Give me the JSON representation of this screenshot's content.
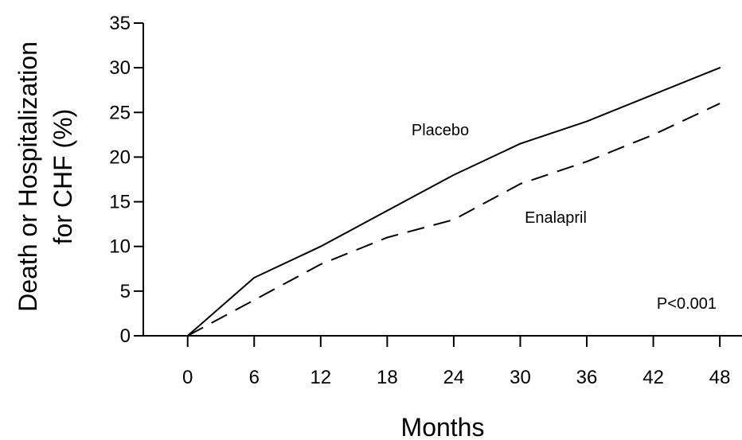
{
  "chart_data": {
    "type": "line",
    "title": "",
    "xlabel": "Months",
    "ylabel_lines": [
      "Death or Hospitalization",
      "for CHF (%)"
    ],
    "xlim": [
      -4,
      50
    ],
    "ylim": [
      0,
      35
    ],
    "x_ticks": [
      0,
      6,
      12,
      18,
      24,
      30,
      36,
      42,
      48
    ],
    "y_ticks": [
      0,
      5,
      10,
      15,
      20,
      25,
      30,
      35
    ],
    "grid": false,
    "legend": "none",
    "series": [
      {
        "name": "Placebo",
        "style": "solid",
        "color": "#000000",
        "x": [
          0,
          6,
          12,
          18,
          24,
          30,
          36,
          42,
          48
        ],
        "y": [
          0,
          6.5,
          10,
          14,
          18,
          21.5,
          24,
          27,
          30
        ]
      },
      {
        "name": "Enalapril",
        "style": "dashed",
        "color": "#000000",
        "x": [
          0,
          6,
          12,
          18,
          24,
          30,
          36,
          42,
          48
        ],
        "y": [
          0,
          4,
          8,
          11,
          13,
          17,
          19.5,
          22.5,
          26
        ]
      }
    ],
    "annotations": [
      {
        "text": "P<0.001"
      }
    ]
  }
}
